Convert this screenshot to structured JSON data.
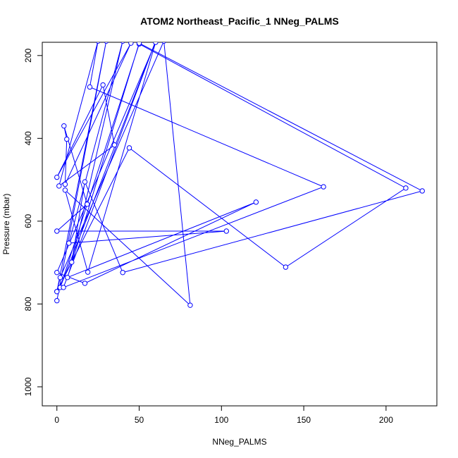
{
  "chart_data": {
    "type": "line",
    "title": "ATOM2 Northeast_Pacific_1 NNeg_PALMS",
    "xlabel": "NNeg_PALMS",
    "ylabel": "Pressure (mbar)",
    "x": [
      0,
      30,
      0,
      44,
      139,
      212,
      50,
      2,
      60,
      4,
      162,
      20,
      25,
      1.3,
      35,
      28,
      0,
      45,
      5,
      6,
      4.3,
      18.4,
      0,
      103,
      7.3,
      40,
      9,
      17,
      40,
      222,
      50,
      6.4,
      121,
      17,
      0,
      60,
      18.8,
      5,
      81,
      65,
      2,
      0
    ],
    "series": [
      {
        "name": "NNeg_PALMS",
        "color": "#0000ff",
        "values": [
          792,
          165,
          770,
          423,
          711,
          520,
          172,
          760,
          165,
          760,
          517,
          276,
          165,
          515,
          416,
          271,
          494,
          170,
          511,
          402,
          370,
          559,
          624,
          624,
          653,
          165,
          699,
          505,
          724,
          527,
          170,
          736,
          554,
          750,
          724,
          168,
          723,
          525,
          803,
          165,
          736,
          770
        ]
      }
    ],
    "xlim": [
      -8.88,
      230.88
    ],
    "ylim": [
      1046,
      168
    ],
    "xticks": [
      0,
      50,
      100,
      150,
      200
    ],
    "yticks": [
      200,
      400,
      600,
      800,
      1000
    ]
  }
}
